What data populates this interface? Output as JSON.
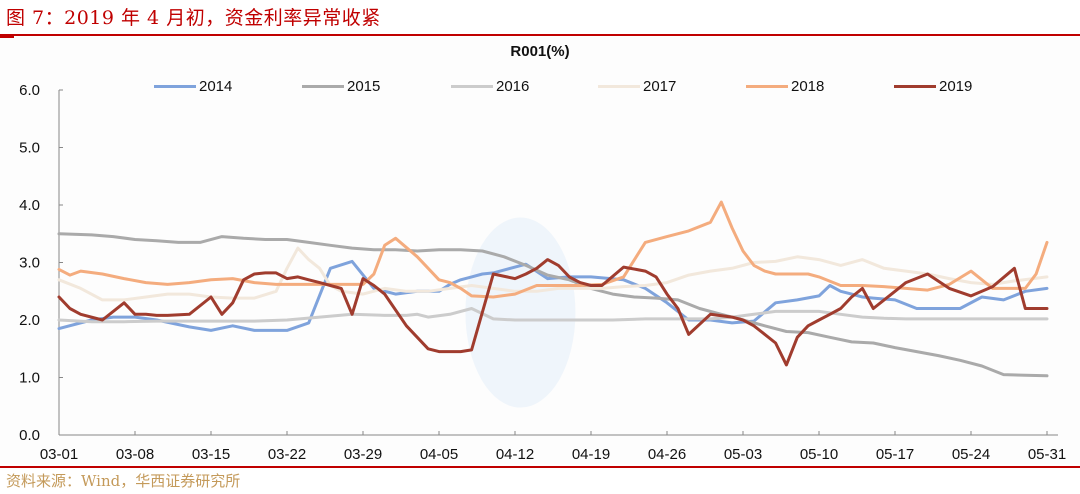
{
  "figure": {
    "title": "图 7：2019 年 4 月初，资金利率异常收紧",
    "source": "资料来源：Wind，华西证券研究所"
  },
  "chart_data": {
    "type": "line",
    "title": "R001(%)",
    "xlabel": "",
    "ylabel": "",
    "ylim": [
      0.0,
      6.0
    ],
    "yticks": [
      "0.0",
      "1.0",
      "2.0",
      "3.0",
      "4.0",
      "5.0",
      "6.0"
    ],
    "x_tick_labels": [
      "03-01",
      "03-08",
      "03-15",
      "03-22",
      "03-29",
      "04-05",
      "04-12",
      "04-19",
      "04-26",
      "05-03",
      "05-10",
      "05-17",
      "05-24",
      "05-31"
    ],
    "x_unit": "days since 03-01",
    "grid": false,
    "legend_position": "top",
    "highlight": {
      "type": "ellipse",
      "center_day": 42.5,
      "center_value": 2.13,
      "note": "early April tightening"
    },
    "series": [
      {
        "name": "2014",
        "color": "#7fa3dc",
        "x": [
          0,
          3,
          5,
          7,
          9,
          12,
          14,
          16,
          18,
          21,
          23,
          25,
          27,
          29,
          31,
          33,
          35,
          36,
          37,
          38,
          39,
          40,
          43,
          45,
          47,
          49,
          52,
          54,
          56,
          58,
          60,
          62,
          64,
          66,
          68,
          70,
          71,
          72,
          73,
          74,
          75,
          77,
          79,
          81,
          83,
          85,
          87,
          89,
          91
        ],
        "y": [
          1.85,
          2.0,
          2.05,
          2.05,
          2.0,
          1.88,
          1.82,
          1.9,
          1.82,
          1.82,
          1.95,
          2.9,
          3.02,
          2.55,
          2.45,
          2.5,
          2.5,
          2.62,
          2.7,
          2.75,
          2.8,
          2.82,
          2.97,
          2.72,
          2.75,
          2.75,
          2.7,
          2.55,
          2.3,
          2.0,
          2.0,
          1.95,
          1.98,
          2.3,
          2.35,
          2.42,
          2.6,
          2.5,
          2.45,
          2.4,
          2.38,
          2.35,
          2.2,
          2.2,
          2.2,
          2.4,
          2.35,
          2.5,
          2.55
        ]
      },
      {
        "name": "2015",
        "color": "#aaaaaa",
        "x": [
          0,
          3,
          5,
          7,
          9,
          11,
          13,
          15,
          17,
          19,
          21,
          23,
          25,
          27,
          29,
          31,
          33,
          35,
          37,
          39,
          41,
          43,
          45,
          47,
          49,
          51,
          53,
          55,
          57,
          59,
          61,
          63,
          65,
          67,
          69,
          71,
          73,
          75,
          77,
          79,
          81,
          83,
          85,
          87,
          89,
          91
        ],
        "y": [
          3.5,
          3.48,
          3.45,
          3.4,
          3.38,
          3.35,
          3.35,
          3.45,
          3.42,
          3.4,
          3.4,
          3.35,
          3.3,
          3.25,
          3.22,
          3.22,
          3.2,
          3.22,
          3.22,
          3.2,
          3.1,
          2.95,
          2.78,
          2.7,
          2.55,
          2.45,
          2.4,
          2.38,
          2.35,
          2.2,
          2.1,
          2.0,
          1.9,
          1.8,
          1.78,
          1.7,
          1.62,
          1.6,
          1.52,
          1.45,
          1.38,
          1.3,
          1.2,
          1.05,
          1.04,
          1.03
        ]
      },
      {
        "name": "2016",
        "color": "#cccccc",
        "x": [
          0,
          3,
          6,
          9,
          12,
          15,
          18,
          21,
          24,
          27,
          30,
          32,
          33,
          34,
          36,
          38,
          40,
          42,
          45,
          48,
          51,
          54,
          57,
          60,
          62,
          64,
          66,
          68,
          70,
          72,
          74,
          76,
          78,
          80,
          82,
          84,
          86,
          88,
          91
        ],
        "y": [
          2.0,
          1.97,
          1.97,
          1.98,
          1.98,
          1.98,
          1.98,
          2.0,
          2.05,
          2.1,
          2.08,
          2.08,
          2.1,
          2.05,
          2.1,
          2.2,
          2.02,
          2.0,
          2.0,
          2.0,
          2.0,
          2.02,
          2.02,
          2.02,
          2.05,
          2.1,
          2.15,
          2.15,
          2.15,
          2.1,
          2.05,
          2.03,
          2.02,
          2.02,
          2.02,
          2.02,
          2.02,
          2.02,
          2.02
        ]
      },
      {
        "name": "2017",
        "color": "#f2e8dc",
        "x": [
          0,
          2,
          4,
          6,
          8,
          10,
          12,
          14,
          16,
          18,
          20,
          21,
          22,
          23,
          24,
          25,
          26,
          28,
          30,
          32,
          34,
          36,
          38,
          40,
          42,
          44,
          46,
          48,
          50,
          52,
          54,
          56,
          58,
          60,
          62,
          64,
          66,
          68,
          70,
          72,
          74,
          76,
          78,
          80,
          82,
          84,
          86,
          88,
          91
        ],
        "y": [
          2.7,
          2.55,
          2.35,
          2.35,
          2.4,
          2.45,
          2.45,
          2.4,
          2.38,
          2.38,
          2.5,
          2.9,
          3.25,
          3.05,
          2.9,
          2.6,
          2.5,
          2.45,
          2.55,
          2.5,
          2.5,
          2.55,
          2.6,
          2.55,
          2.5,
          2.5,
          2.55,
          2.55,
          2.55,
          2.58,
          2.6,
          2.65,
          2.78,
          2.85,
          2.9,
          3.0,
          3.02,
          3.1,
          3.05,
          2.95,
          3.05,
          2.9,
          2.85,
          2.8,
          2.72,
          2.65,
          2.62,
          2.68,
          2.75
        ]
      },
      {
        "name": "2018",
        "color": "#f4ac7e",
        "x": [
          0,
          1,
          2,
          4,
          6,
          8,
          10,
          12,
          14,
          16,
          18,
          20,
          22,
          24,
          26,
          28,
          29,
          30,
          31,
          33,
          35,
          36,
          37,
          38,
          40,
          42,
          44,
          46,
          48,
          50,
          52,
          54,
          56,
          58,
          60,
          61,
          62,
          63,
          64,
          65,
          66,
          67,
          68,
          69,
          70,
          72,
          74,
          76,
          78,
          80,
          82,
          84,
          86,
          88,
          89,
          90,
          91
        ],
        "y": [
          2.88,
          2.78,
          2.85,
          2.8,
          2.72,
          2.65,
          2.62,
          2.65,
          2.7,
          2.72,
          2.65,
          2.62,
          2.62,
          2.62,
          2.62,
          2.62,
          2.8,
          3.3,
          3.42,
          3.1,
          2.7,
          2.65,
          2.55,
          2.42,
          2.4,
          2.45,
          2.6,
          2.6,
          2.6,
          2.62,
          2.75,
          3.35,
          3.45,
          3.55,
          3.7,
          4.05,
          3.6,
          3.2,
          2.95,
          2.85,
          2.8,
          2.8,
          2.8,
          2.8,
          2.75,
          2.6,
          2.6,
          2.58,
          2.55,
          2.52,
          2.62,
          2.85,
          2.55,
          2.55,
          2.55,
          2.8,
          3.35
        ]
      },
      {
        "name": "2019",
        "color": "#a03c2e",
        "x": [
          0,
          1,
          2,
          4,
          6,
          7,
          8,
          9,
          10,
          12,
          14,
          15,
          16,
          17,
          18,
          19,
          20,
          21,
          22,
          23,
          24,
          25,
          26,
          27,
          28,
          29,
          30,
          32,
          34,
          35,
          36,
          37,
          38,
          40,
          42,
          43,
          44,
          45,
          46,
          47,
          48,
          49,
          50,
          52,
          54,
          55,
          56,
          57,
          58,
          60,
          62,
          63,
          64,
          66,
          67,
          68,
          69,
          70,
          71,
          72,
          73,
          74,
          75,
          76,
          77,
          78,
          80,
          82,
          84,
          86,
          88,
          89,
          90,
          91
        ],
        "y": [
          2.4,
          2.2,
          2.1,
          2.0,
          2.3,
          2.1,
          2.1,
          2.08,
          2.08,
          2.1,
          2.4,
          2.1,
          2.3,
          2.7,
          2.8,
          2.82,
          2.82,
          2.72,
          2.75,
          2.7,
          2.65,
          2.6,
          2.55,
          2.1,
          2.72,
          2.6,
          2.45,
          1.9,
          1.5,
          1.45,
          1.45,
          1.45,
          1.48,
          2.8,
          2.72,
          2.8,
          2.9,
          3.05,
          2.95,
          2.75,
          2.65,
          2.6,
          2.6,
          2.92,
          2.85,
          2.75,
          2.45,
          2.2,
          1.75,
          2.1,
          2.05,
          2.0,
          1.9,
          1.6,
          1.22,
          1.7,
          1.9,
          2.0,
          2.1,
          2.2,
          2.4,
          2.55,
          2.2,
          2.35,
          2.5,
          2.65,
          2.8,
          2.55,
          2.42,
          2.58,
          2.9,
          2.2,
          2.2,
          2.2
        ]
      }
    ]
  },
  "axes": {
    "y_labels": [
      "6.0",
      "5.0",
      "4.0",
      "3.0",
      "2.0",
      "1.0",
      "0.0"
    ]
  }
}
